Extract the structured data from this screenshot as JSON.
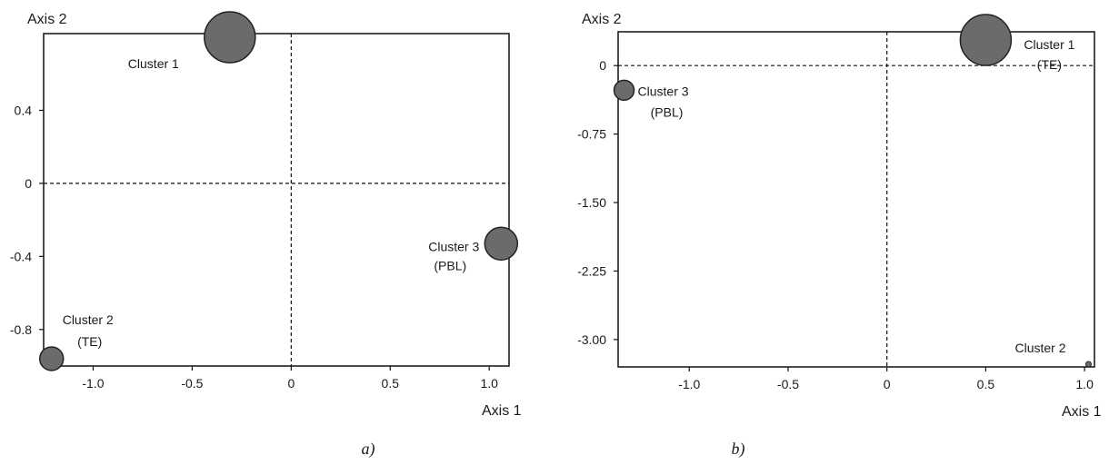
{
  "chart_data": [
    {
      "type": "scatter",
      "caption": "a)",
      "xlabel": "Axis 1",
      "ylabel": "Axis 2",
      "xlim": [
        -1.25,
        1.1
      ],
      "ylim": [
        -1.0,
        0.82
      ],
      "xticks": [
        -1.0,
        -0.5,
        0,
        0.5,
        1.0
      ],
      "xtick_labels": [
        "-1.0",
        "-0.5",
        "0",
        "0.5",
        "1.0"
      ],
      "yticks": [
        -0.8,
        -0.4,
        0,
        0.4
      ],
      "ytick_labels": [
        "-0.8",
        "-0.4",
        "0",
        "0.4"
      ],
      "reference_lines": {
        "x": 0,
        "y": 0,
        "style": "dashed"
      },
      "grid": false,
      "marker_color": "#6b6b6b",
      "points": [
        {
          "label": "Cluster 1",
          "x": -0.31,
          "y": 0.8,
          "size": "large"
        },
        {
          "label": "Cluster 2",
          "sublabel": "(TE)",
          "x": -1.21,
          "y": -0.96,
          "size": "small"
        },
        {
          "label": "Cluster 3",
          "sublabel": "(PBL)",
          "x": 1.06,
          "y": -0.33,
          "size": "medium"
        }
      ]
    },
    {
      "type": "scatter",
      "caption": "b)",
      "xlabel": "Axis 1",
      "ylabel": "Axis 2",
      "xlim": [
        -1.36,
        1.05
      ],
      "ylim": [
        -3.3,
        0.37
      ],
      "xticks": [
        -1.0,
        -0.5,
        0,
        0.5,
        1.0
      ],
      "xtick_labels": [
        "-1.0",
        "-0.5",
        "0",
        "0.5",
        "1.0"
      ],
      "yticks": [
        0,
        -0.75,
        -1.5,
        -2.25,
        -3.0
      ],
      "ytick_labels": [
        "0",
        "-0.75",
        "-1.50",
        "-2.25",
        "-3.00"
      ],
      "reference_lines": {
        "x": 0,
        "y": 0,
        "style": "dashed"
      },
      "grid": false,
      "marker_color": "#6b6b6b",
      "points": [
        {
          "label": "Cluster 1",
          "sublabel": "(TE)",
          "x": 0.5,
          "y": 0.28,
          "size": "large"
        },
        {
          "label": "Cluster 3",
          "sublabel": "(PBL)",
          "x": -1.33,
          "y": -0.27,
          "size": "small"
        },
        {
          "label": "Cluster 2",
          "x": 1.02,
          "y": -3.27,
          "size": "tiny"
        }
      ]
    }
  ]
}
